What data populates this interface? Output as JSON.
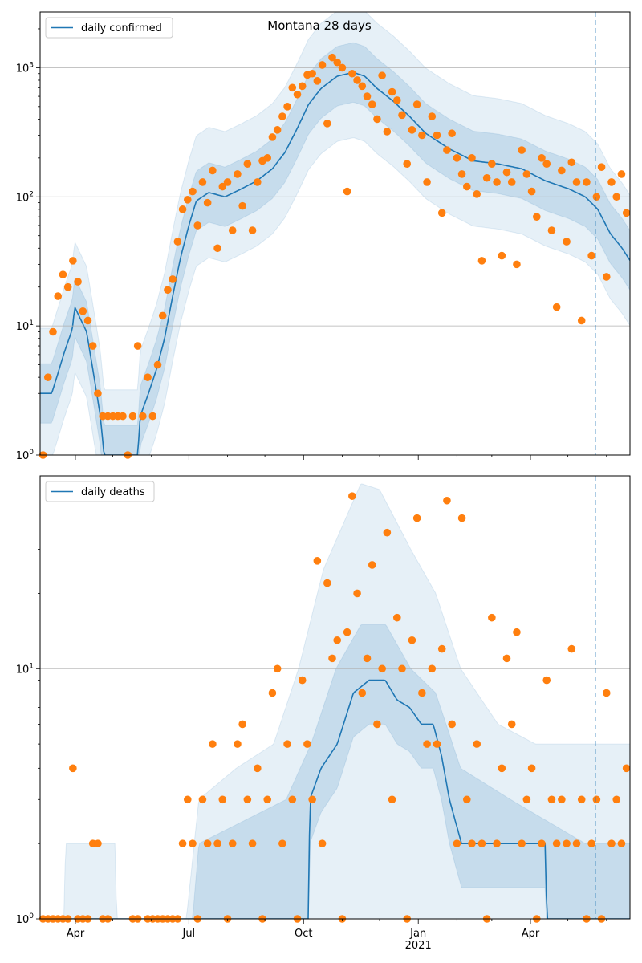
{
  "chart_data": {
    "title": "Montana 28 days",
    "type": "line+scatter",
    "x_axis": {
      "unit": "days since 2020-03-01",
      "range": [
        2.7,
        475.8
      ],
      "major_ticks": [
        {
          "day": 31,
          "label": "Apr"
        },
        {
          "day": 122,
          "label": "Jul"
        },
        {
          "day": 214,
          "label": "Oct"
        },
        {
          "day": 306,
          "label": "Jan",
          "sublabel": "2021"
        },
        {
          "day": 396,
          "label": "Apr"
        }
      ],
      "minor_tick_days": [
        61,
        92,
        153,
        183,
        245,
        275,
        337,
        365,
        426,
        457
      ],
      "vline_day": 448
    },
    "panels": [
      {
        "legend": "daily confirmed",
        "legend_position": "upper-left",
        "yscale": "log",
        "ylim": [
          1,
          2700
        ],
        "major_yticks": [
          {
            "v": 1,
            "exp": "0"
          },
          {
            "v": 10,
            "exp": "1"
          },
          {
            "v": 100,
            "exp": "2"
          },
          {
            "v": 1000,
            "exp": "3"
          }
        ],
        "median": [
          [
            3,
            3
          ],
          [
            12,
            3
          ],
          [
            16,
            4
          ],
          [
            22,
            6.2
          ],
          [
            28.5,
            9.4
          ],
          [
            30.5,
            14
          ],
          [
            40,
            9
          ],
          [
            46,
            4
          ],
          [
            51,
            2
          ],
          [
            54,
            1
          ],
          [
            81,
            1
          ],
          [
            83,
            2
          ],
          [
            89.6,
            3
          ],
          [
            96,
            4.6
          ],
          [
            102.5,
            8
          ],
          [
            109,
            17
          ],
          [
            115.4,
            34
          ],
          [
            122,
            60
          ],
          [
            128,
            93
          ],
          [
            138,
            108
          ],
          [
            151,
            100
          ],
          [
            164,
            115
          ],
          [
            176.5,
            133
          ],
          [
            189,
            165
          ],
          [
            199,
            220
          ],
          [
            209,
            340
          ],
          [
            218,
            520
          ],
          [
            228,
            690
          ],
          [
            241,
            860
          ],
          [
            254,
            920
          ],
          [
            263,
            860
          ],
          [
            273,
            690
          ],
          [
            286,
            550
          ],
          [
            299,
            420
          ],
          [
            312,
            310
          ],
          [
            331,
            235
          ],
          [
            350,
            190
          ],
          [
            370,
            180
          ],
          [
            389,
            165
          ],
          [
            408,
            133
          ],
          [
            427,
            115
          ],
          [
            440,
            100
          ],
          [
            450,
            80
          ],
          [
            460,
            52
          ],
          [
            469.5,
            40
          ],
          [
            476,
            32
          ]
        ],
        "band_factors": [
          1.7,
          3.2
        ],
        "observed_start_day": 5,
        "observed_step_days": 4,
        "observed": [
          1,
          4,
          9,
          17,
          25,
          20,
          32,
          22,
          13,
          11,
          7,
          3,
          2,
          2,
          2,
          2,
          2,
          1,
          2,
          7,
          2,
          4,
          2,
          5,
          12,
          19,
          23,
          45,
          80,
          95,
          110,
          60,
          130,
          90,
          160,
          40,
          120,
          130,
          55,
          150,
          85,
          180,
          55,
          130,
          190,
          200,
          290,
          330,
          420,
          500,
          700,
          620,
          720,
          880,
          900,
          790,
          1050,
          370,
          1200,
          1100,
          1000,
          110,
          900,
          800,
          720,
          600,
          520,
          400,
          870,
          320,
          650,
          560,
          430,
          180,
          330,
          520,
          300,
          130,
          420,
          300,
          75,
          230,
          310,
          200,
          150,
          120,
          200,
          105,
          32,
          140,
          180,
          130,
          35,
          155,
          130,
          30,
          230,
          150,
          110,
          70,
          200,
          180,
          55,
          14,
          160,
          45,
          185,
          130,
          11,
          130,
          35,
          100,
          170,
          24,
          130,
          100,
          150,
          75
        ]
      },
      {
        "legend": "daily deaths",
        "legend_position": "upper-left",
        "yscale": "log",
        "ylim": [
          1,
          59
        ],
        "major_yticks": [
          {
            "v": 1,
            "exp": "0"
          },
          {
            "v": 10,
            "exp": "1"
          }
        ],
        "median": [
          [
            3,
            1
          ],
          [
            189,
            1
          ],
          [
            218,
            1
          ],
          [
            219,
            3
          ],
          [
            228,
            4
          ],
          [
            241,
            5
          ],
          [
            254,
            8
          ],
          [
            266.6,
            9
          ],
          [
            279.5,
            9
          ],
          [
            289,
            7.5
          ],
          [
            299,
            7
          ],
          [
            308.5,
            6
          ],
          [
            318,
            6
          ],
          [
            324.6,
            4.5
          ],
          [
            331,
            3
          ],
          [
            340.7,
            2
          ],
          [
            357,
            2
          ],
          [
            408,
            2
          ],
          [
            409,
            1
          ],
          [
            476,
            1
          ]
        ],
        "outer_upper": [
          [
            3,
            1
          ],
          [
            22,
            1
          ],
          [
            23,
            2
          ],
          [
            63,
            2
          ],
          [
            64,
            1
          ],
          [
            120,
            1
          ],
          [
            130,
            3
          ],
          [
            160,
            4
          ],
          [
            190,
            5
          ],
          [
            210,
            10
          ],
          [
            230,
            25
          ],
          [
            260,
            55
          ],
          [
            275,
            52
          ],
          [
            300,
            30
          ],
          [
            320,
            20
          ],
          [
            340,
            10
          ],
          [
            370,
            6
          ],
          [
            400,
            5
          ],
          [
            440,
            5
          ],
          [
            476,
            5
          ]
        ],
        "inner_upper": [
          [
            3,
            1
          ],
          [
            125,
            1
          ],
          [
            130,
            2
          ],
          [
            200,
            3
          ],
          [
            220,
            5
          ],
          [
            240,
            10
          ],
          [
            260,
            15
          ],
          [
            280,
            15
          ],
          [
            300,
            10
          ],
          [
            320,
            8
          ],
          [
            340,
            4
          ],
          [
            380,
            3
          ],
          [
            440,
            2
          ],
          [
            476,
            2
          ]
        ],
        "observed_start_day": 5,
        "observed_step_days": 4,
        "observed": [
          1,
          1,
          1,
          1,
          1,
          1,
          4,
          1,
          1,
          1,
          2,
          2,
          1,
          1,
          0,
          0,
          0,
          0,
          1,
          1,
          0,
          1,
          1,
          1,
          1,
          1,
          1,
          1,
          2,
          3,
          2,
          1,
          3,
          2,
          5,
          2,
          3,
          1,
          2,
          5,
          6,
          3,
          2,
          4,
          1,
          3,
          8,
          10,
          2,
          5,
          3,
          1,
          9,
          5,
          3,
          27,
          2,
          22,
          11,
          13,
          1,
          14,
          49,
          20,
          8,
          11,
          26,
          6,
          10,
          35,
          3,
          16,
          10,
          1,
          13,
          40,
          8,
          5,
          10,
          5,
          12,
          47,
          6,
          2,
          40,
          3,
          2,
          5,
          2,
          1,
          16,
          2,
          4,
          11,
          6,
          14,
          2,
          3,
          4,
          1,
          2,
          9,
          3,
          2,
          3,
          2,
          12,
          2,
          3,
          1,
          2,
          3,
          1,
          8,
          2,
          3,
          2,
          4
        ]
      }
    ],
    "colors": {
      "line": "#1f77b4",
      "points": "#ff7f0e",
      "band": "#1f77b4",
      "grid": "#b0b0b0"
    }
  }
}
